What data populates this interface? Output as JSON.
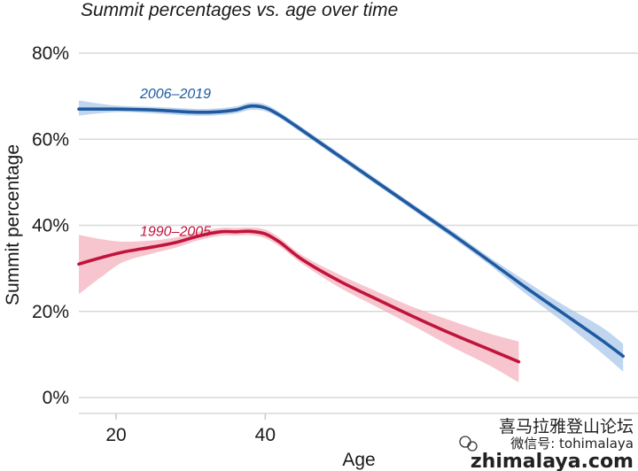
{
  "chart_data": {
    "type": "line",
    "title": "Summit percentages vs. age over time",
    "xlabel": "Age",
    "ylabel": "Summit percentage",
    "xlim": [
      15,
      90
    ],
    "ylim": [
      0,
      80
    ],
    "x_ticks": [
      20,
      40
    ],
    "y_ticks": [
      0,
      20,
      40,
      60,
      80
    ],
    "y_tick_labels": [
      "0%",
      "20%",
      "40%",
      "60%",
      "80%"
    ],
    "grid": true,
    "legend": "inline labels",
    "series": [
      {
        "name": "2006–2019",
        "color": "#1f5aa0",
        "band_color": "#9ec0e6",
        "x": [
          15,
          20,
          25,
          30,
          33,
          36,
          38,
          40,
          42,
          45,
          50,
          55,
          60,
          65,
          70,
          75,
          80,
          85,
          88
        ],
        "y": [
          67,
          67,
          66.8,
          66.3,
          66.3,
          66.8,
          67.7,
          67.3,
          65.5,
          62,
          56,
          50,
          44,
          38,
          31.8,
          25.5,
          19.5,
          13.5,
          9.6
        ],
        "lower": [
          65.5,
          66.3,
          66,
          65.5,
          65.5,
          66,
          66.8,
          66.5,
          64.8,
          61.3,
          55.3,
          49.3,
          43.3,
          37.2,
          30.9,
          24,
          17.5,
          10.5,
          6
        ],
        "upper": [
          69,
          67.8,
          67.5,
          67.1,
          67.1,
          67.6,
          68.5,
          68.1,
          66.2,
          62.7,
          56.7,
          50.7,
          44.7,
          38.8,
          32.7,
          27,
          21.5,
          16.5,
          12.5
        ]
      },
      {
        "name": "1990–2005",
        "color": "#c0143c",
        "band_color": "#f2a6b4",
        "x": [
          15,
          18,
          21,
          25,
          28,
          31,
          34,
          36,
          38,
          40,
          42,
          45,
          50,
          55,
          60,
          65,
          70,
          74
        ],
        "y": [
          31,
          32.5,
          33.8,
          35,
          36,
          37.5,
          38.5,
          38.5,
          38.6,
          38,
          36,
          32,
          27,
          22.8,
          18.7,
          14.8,
          11.2,
          8.3
        ],
        "lower": [
          24,
          28,
          31.5,
          33.5,
          34.8,
          36.5,
          37.6,
          37.6,
          37.7,
          37,
          35,
          31,
          25.5,
          21,
          16.5,
          11.8,
          7.5,
          3.5
        ],
        "upper": [
          37.8,
          36.8,
          36.2,
          36.5,
          37.2,
          38.5,
          39.4,
          39.4,
          39.5,
          39,
          37,
          33,
          28.5,
          24.6,
          20.9,
          17.8,
          14.9,
          13
        ]
      }
    ]
  },
  "watermark": {
    "chinese_text": "喜马拉雅登山论坛",
    "wechat_text": "微信号: tohimalaya",
    "site_text": "zhimalaya.com"
  }
}
